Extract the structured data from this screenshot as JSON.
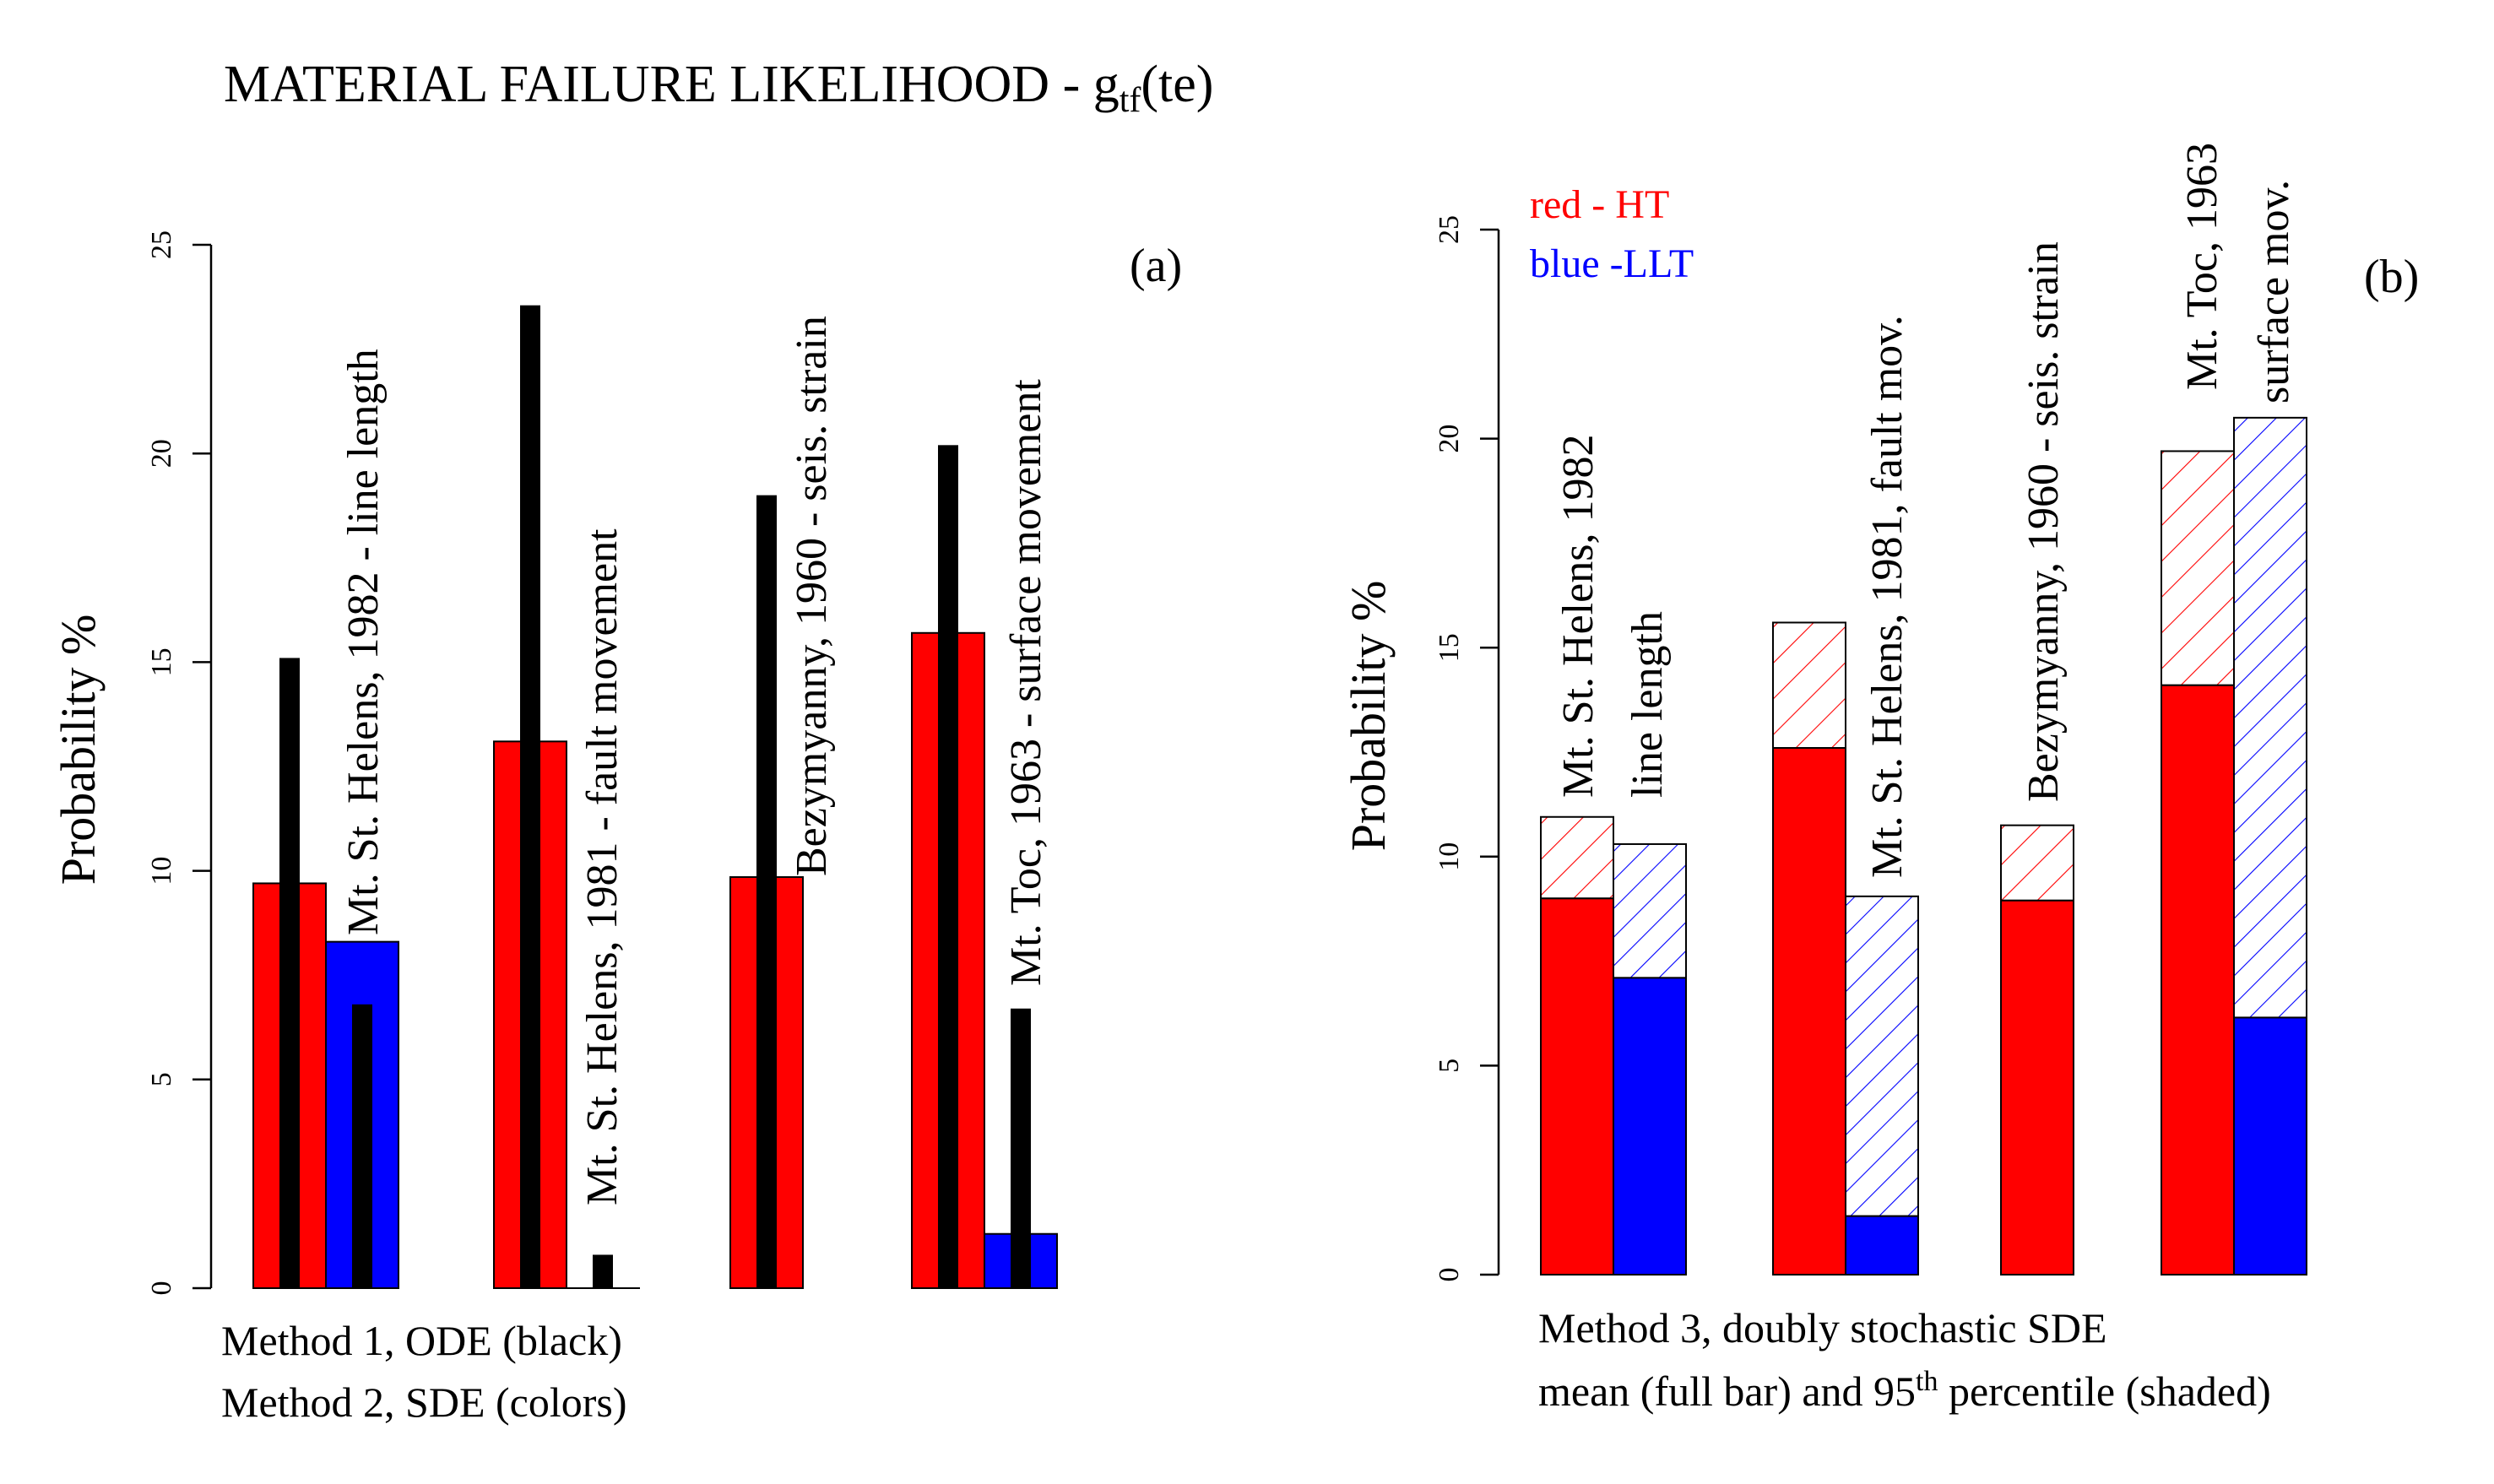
{
  "figure": {
    "title_main": "MATERIAL FAILURE LIKELIHOOD - g",
    "title_sub": "tf",
    "title_tail": "(te)"
  },
  "panel_a": {
    "tag": "(a)",
    "ylabel": "Probability %",
    "yticks": [
      "0",
      "5",
      "10",
      "15",
      "20",
      "25"
    ],
    "note_line1": "Method 1, ODE (black)",
    "note_line2": "Method 2, SDE (colors)",
    "event_labels": [
      "Mt. St. Helens, 1982 - line length",
      "Mt. St. Helens, 1981 - fault movement",
      "Bezymyanny, 1960 - seis. strain",
      "Mt. Toc, 1963 - surface  movement"
    ]
  },
  "panel_b": {
    "tag": "(b)",
    "ylabel": "Probability %",
    "yticks": [
      "0",
      "5",
      "10",
      "15",
      "20",
      "25"
    ],
    "legend_red": "red - HT",
    "legend_blue": "blue -LLT",
    "note_line1": "Method 3, doubly stochastic SDE",
    "note_line2_a": "mean (full bar) and 95",
    "note_line2_sup": "th",
    "note_line2_b": " percentile (shaded)",
    "event_labels": [
      [
        "Mt. St. Helens, 1982",
        "line length"
      ],
      [
        "Mt. St. Helens, 1981, fault mov."
      ],
      [
        "Bezymyanny, 1960 - seis. strain"
      ],
      [
        "Mt. Toc, 1963",
        "surface  mov."
      ]
    ]
  },
  "colors": {
    "red": "#ff0000",
    "blue": "#0000ff",
    "black": "#000000"
  },
  "chart_data": [
    {
      "type": "bar",
      "panel": "a",
      "ylabel": "Probability %",
      "ylim": [
        0,
        25
      ],
      "categories": [
        "Mt. St. Helens, 1982 - line length",
        "Mt. St. Helens, 1981 - fault movement",
        "Bezymyanny, 1960 - seis. strain",
        "Mt. Toc, 1963 - surface  movement"
      ],
      "series": [
        {
          "name": "HT",
          "method": "Method 2, SDE (colors)",
          "color": "red",
          "values": [
            9.7,
            13.1,
            9.85,
            15.7
          ]
        },
        {
          "name": "LLT",
          "method": "Method 2, SDE (colors)",
          "color": "blue",
          "values": [
            8.3,
            0,
            null,
            1.3
          ]
        },
        {
          "method": "Method 1, ODE (black), HT",
          "color": "black",
          "values": [
            15.1,
            23.55,
            19.0,
            20.2
          ]
        },
        {
          "method": "Method 1, ODE (black), LLT",
          "color": "black",
          "values": [
            6.8,
            0.8,
            null,
            6.7
          ]
        }
      ]
    },
    {
      "type": "bar",
      "panel": "b",
      "ylabel": "Probability %",
      "ylim": [
        0,
        25
      ],
      "categories": [
        "Mt. St. Helens, 1982 line length",
        "Mt. St. Helens, 1981, fault mov.",
        "Bezymyanny, 1960 - seis. strain",
        "Mt. Toc, 1963 surface  mov."
      ],
      "series": [
        {
          "name": "red - HT",
          "color": "red",
          "mean": [
            9.0,
            12.6,
            8.95,
            14.1
          ],
          "p95": [
            10.95,
            15.6,
            10.75,
            19.7
          ]
        },
        {
          "name": "blue -LLT",
          "color": "blue",
          "mean": [
            7.1,
            1.4,
            null,
            6.15
          ],
          "p95": [
            10.3,
            9.05,
            null,
            20.5
          ]
        }
      ]
    }
  ]
}
